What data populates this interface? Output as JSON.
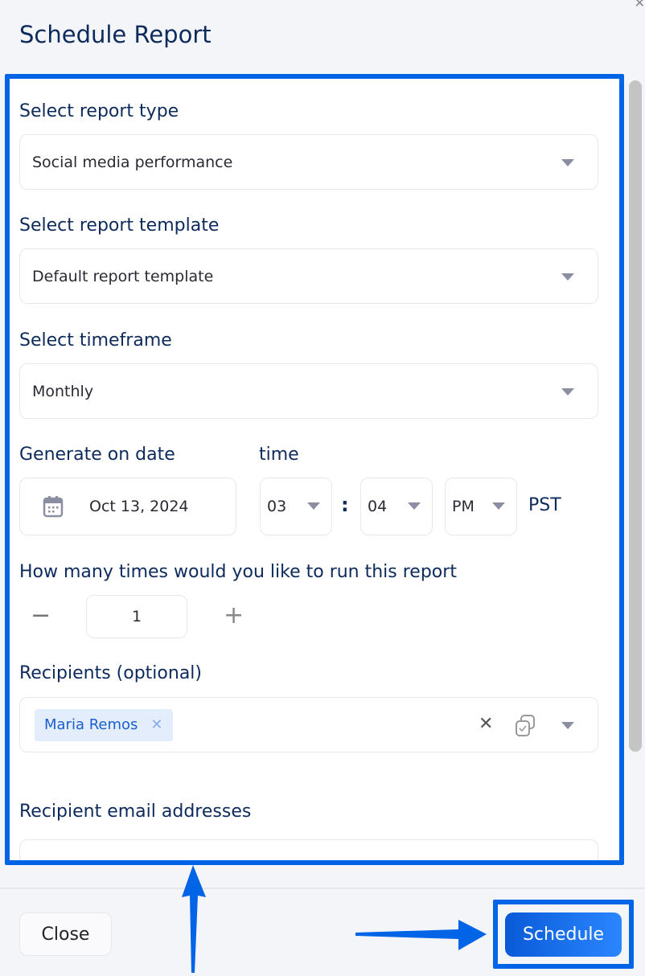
{
  "dialog": {
    "title": "Schedule Report"
  },
  "report_type": {
    "label": "Select report type",
    "value": "Social media performance"
  },
  "report_template": {
    "label": "Select report template",
    "value": "Default report template"
  },
  "timeframe": {
    "label": "Select timeframe",
    "value": "Monthly"
  },
  "generate": {
    "date_label": "Generate on date",
    "date_value": "Oct 13, 2024",
    "time_label": "time",
    "hour": "03",
    "separator": ":",
    "minute": "04",
    "ampm": "PM",
    "timezone": "PST"
  },
  "runs": {
    "label": "How many times would you like to run this report",
    "value": "1",
    "minus": "−",
    "plus": "+"
  },
  "recipients": {
    "label": "Recipients (optional)",
    "chips": [
      {
        "name": "Maria Remos",
        "remove": "✕"
      }
    ],
    "clear": "✕"
  },
  "emails": {
    "label": "Recipient email addresses"
  },
  "footer": {
    "close_label": "Close",
    "schedule_label": "Schedule"
  },
  "colors": {
    "accent": "#0064e6",
    "title": "#0d2a5c",
    "chip_bg": "#e3edfc"
  }
}
